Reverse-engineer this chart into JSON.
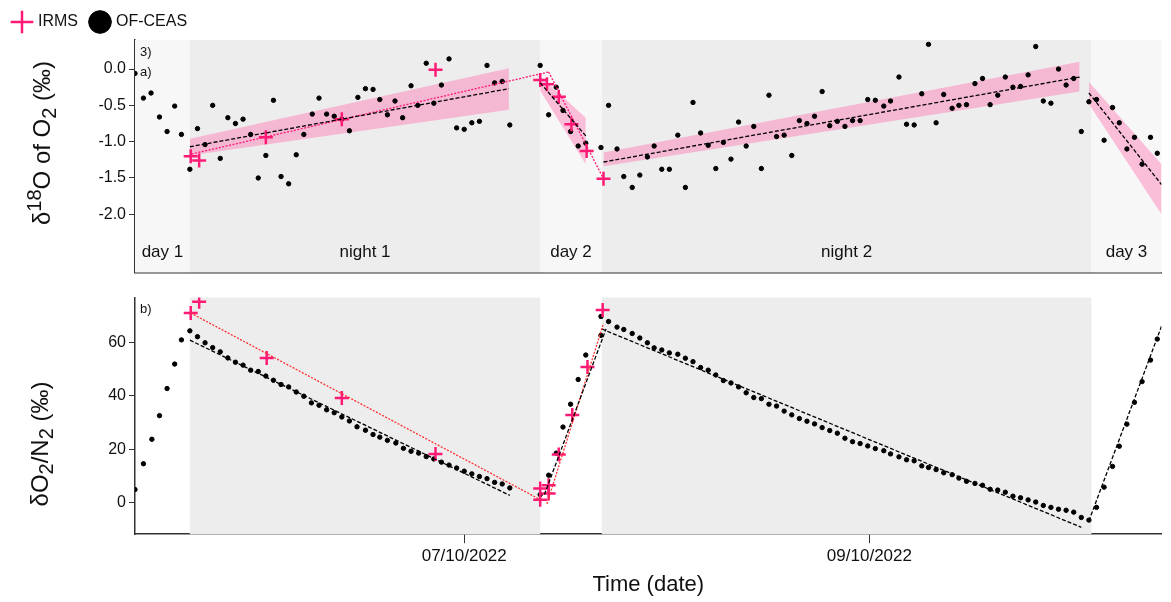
{
  "chart_data": [
    {
      "type": "scatter",
      "ylabel": "δ$^{18}$O of O$_{2}$ (‰)",
      "xlim": [
        "2022-10-05T09:00",
        "2022-10-10T10:36"
      ],
      "ylim": [
        -2.8,
        0.4
      ],
      "yticks": [
        {
          "value": 0,
          "label": "0.0"
        },
        -0.5,
        {
          "value": -1,
          "label": "-1.0"
        },
        -1.5,
        {
          "value": -2,
          "label": "-2.0"
        }
      ],
      "tick_labels": "y",
      "legend": "top left",
      "bands": [
        {
          "axis": "x",
          "from": "2022-10-05T09:00",
          "to": "2022-10-05T15:30",
          "label": "day 1",
          "color": "#f7f7f7"
        },
        {
          "axis": "x",
          "from": "2022-10-05T15:30",
          "to": "2022-10-07T09:00",
          "label": "night 1",
          "color": "#ededed"
        },
        {
          "axis": "x",
          "from": "2022-10-07T09:00",
          "to": "2022-10-07T16:18",
          "label": "day 2",
          "color": "#f7f7f7"
        },
        {
          "axis": "x",
          "from": "2022-10-07T16:18",
          "to": "2022-10-10T02:18",
          "label": "night 2",
          "color": "#ededed"
        },
        {
          "axis": "x",
          "from": "2022-10-10T02:18",
          "to": "2022-10-10T10:36",
          "label": "day 3",
          "color": "#f7f7f7"
        }
      ],
      "annotations": [
        "3)",
        "a)"
      ],
      "series": [
        {
          "name": "IRMS",
          "color": "#ff1a75",
          "marker": "cross",
          "x": [
            "2022-10-05T15:36",
            "2022-10-05T16:36",
            "2022-10-06T00:30",
            "2022-10-06T09:30",
            "2022-10-06T20:36",
            "2022-10-07T09:00",
            "2022-10-07T09:48",
            "2022-10-07T11:12",
            "2022-10-07T12:42",
            "2022-10-07T14:30",
            "2022-10-07T16:30"
          ],
          "values": [
            -1.2,
            -1.26,
            -0.94,
            -0.69,
            -0.01,
            -0.15,
            -0.21,
            -0.38,
            -0.76,
            -1.13,
            -1.51
          ]
        },
        {
          "name": "OF-CEAS",
          "color": "#000000",
          "marker": "circle",
          "x": [
            "2022-10-05T09:00",
            "2022-10-05T10:00",
            "2022-10-05T10:54",
            "2022-10-05T11:54",
            "2022-10-05T12:48",
            "2022-10-05T13:42",
            "2022-10-05T14:30",
            "2022-10-05T15:30",
            "2022-10-05T16:24",
            "2022-10-05T17:18",
            "2022-10-05T18:12",
            "2022-10-05T19:06",
            "2022-10-05T20:00",
            "2022-10-05T20:54",
            "2022-10-05T21:48",
            "2022-10-05T22:42",
            "2022-10-05T23:36",
            "2022-10-06T00:30",
            "2022-10-06T01:24",
            "2022-10-06T02:18",
            "2022-10-06T03:12",
            "2022-10-06T04:06",
            "2022-10-06T05:00",
            "2022-10-06T06:00",
            "2022-10-06T06:48",
            "2022-10-06T07:42",
            "2022-10-06T08:36",
            "2022-10-06T09:30",
            "2022-10-06T10:24",
            "2022-10-06T11:24",
            "2022-10-06T12:18",
            "2022-10-06T13:12",
            "2022-10-06T14:00",
            "2022-10-06T14:54",
            "2022-10-06T15:48",
            "2022-10-06T16:42",
            "2022-10-06T17:42",
            "2022-10-06T18:30",
            "2022-10-06T19:30",
            "2022-10-06T20:24",
            "2022-10-06T21:18",
            "2022-10-06T22:12",
            "2022-10-06T23:06",
            "2022-10-07T00:00",
            "2022-10-07T00:54",
            "2022-10-07T01:48",
            "2022-10-07T02:42",
            "2022-10-07T03:36",
            "2022-10-07T04:30",
            "2022-10-07T05:24",
            "2022-10-07T09:00",
            "2022-10-07T10:00",
            "2022-10-07T10:54",
            "2022-10-07T11:42",
            "2022-10-07T12:36",
            "2022-10-07T13:30",
            "2022-10-07T14:24",
            "2022-10-07T16:12",
            "2022-10-07T17:06",
            "2022-10-07T18:06",
            "2022-10-07T18:54",
            "2022-10-07T19:54",
            "2022-10-07T20:48",
            "2022-10-07T21:42",
            "2022-10-07T22:30",
            "2022-10-07T23:24",
            "2022-10-08T00:18",
            "2022-10-08T01:18",
            "2022-10-08T02:12",
            "2022-10-08T03:06",
            "2022-10-08T04:00",
            "2022-10-08T04:54",
            "2022-10-08T05:48",
            "2022-10-08T06:42",
            "2022-10-08T07:36",
            "2022-10-08T08:30",
            "2022-10-08T09:24",
            "2022-10-08T10:18",
            "2022-10-08T11:12",
            "2022-10-08T12:06",
            "2022-10-08T13:00",
            "2022-10-08T13:54",
            "2022-10-08T14:48",
            "2022-10-08T15:42",
            "2022-10-08T16:36",
            "2022-10-08T17:30",
            "2022-10-08T18:24",
            "2022-10-08T19:18",
            "2022-10-08T20:12",
            "2022-10-08T21:06",
            "2022-10-08T22:00",
            "2022-10-08T22:54",
            "2022-10-08T23:48",
            "2022-10-09T00:42",
            "2022-10-09T01:42",
            "2022-10-09T02:30",
            "2022-10-09T03:30",
            "2022-10-09T04:24",
            "2022-10-09T05:18",
            "2022-10-09T06:12",
            "2022-10-09T07:00",
            "2022-10-09T07:54",
            "2022-10-09T08:48",
            "2022-10-09T09:48",
            "2022-10-09T10:36",
            "2022-10-09T11:30",
            "2022-10-09T12:30",
            "2022-10-09T13:24",
            "2022-10-09T14:18",
            "2022-10-09T15:12",
            "2022-10-09T16:06",
            "2022-10-09T17:00",
            "2022-10-09T17:54",
            "2022-10-09T18:48",
            "2022-10-09T19:42",
            "2022-10-09T20:36",
            "2022-10-09T21:30",
            "2022-10-09T22:24",
            "2022-10-09T23:18",
            "2022-10-10T00:12",
            "2022-10-10T01:06",
            "2022-10-10T02:00",
            "2022-10-10T02:54",
            "2022-10-10T03:48",
            "2022-10-10T04:48",
            "2022-10-10T05:36",
            "2022-10-10T06:30",
            "2022-10-10T07:24",
            "2022-10-10T08:18",
            "2022-10-10T09:18",
            "2022-10-10T10:06"
          ],
          "values": [
            -0.06,
            -0.4,
            -0.33,
            -0.66,
            -0.86,
            -0.51,
            -0.9,
            -1.38,
            -0.82,
            -1.04,
            -0.5,
            -1.23,
            -0.67,
            -0.75,
            -0.69,
            -0.9,
            -1.5,
            -1.19,
            -0.43,
            -1.48,
            -1.58,
            -1.18,
            -0.9,
            -0.62,
            -0.4,
            -0.62,
            -0.65,
            -0.69,
            -0.85,
            -0.39,
            -0.27,
            -0.28,
            -0.42,
            -0.63,
            -0.44,
            -0.67,
            -0.23,
            -0.5,
            0.08,
            -0.47,
            -0.22,
            0.14,
            -0.81,
            -0.83,
            -0.74,
            -0.72,
            0.05,
            -0.19,
            -0.17,
            -0.77,
            0.05,
            -0.63,
            -0.25,
            -0.57,
            -0.86,
            -1.06,
            -1.02,
            -1.08,
            -0.5,
            -1.1,
            -1.48,
            -1.63,
            -1.46,
            -1.21,
            -1.06,
            -1.38,
            -1.38,
            -0.91,
            -1.63,
            -0.46,
            -0.88,
            -1.05,
            -1.37,
            -1.01,
            -1.24,
            -0.73,
            -1.06,
            -0.79,
            -1.37,
            -0.36,
            -0.93,
            -0.91,
            -1.19,
            -0.71,
            -0.75,
            -0.65,
            -0.31,
            -0.78,
            -0.72,
            -0.79,
            -0.71,
            -0.71,
            -0.42,
            -0.43,
            -0.51,
            -0.44,
            -0.11,
            -0.76,
            -0.77,
            -0.34,
            0.34,
            -0.74,
            -0.35,
            -0.54,
            -0.5,
            -0.49,
            -0.2,
            -0.13,
            -0.49,
            -0.36,
            -0.11,
            -0.25,
            -0.24,
            -0.08,
            0.31,
            -0.44,
            -0.47,
            0.0,
            -0.22,
            -0.13,
            -0.86,
            -0.45,
            -0.42,
            -0.98,
            -0.53,
            -0.74,
            -1.1,
            -0.94,
            -1.31,
            -0.94,
            -1.16
          ]
        },
        {
          "type": "line",
          "color": "#000000",
          "line_style": "dashed",
          "marker": "none",
          "x": [
            "2022-10-05T15:30",
            "2022-10-07T05:18"
          ],
          "values": [
            -1.07,
            -0.27
          ],
          "lower": [
            -1.19,
            -0.56
          ],
          "upper": [
            -0.96,
            0.01
          ]
        },
        {
          "type": "line",
          "color": "#ff1a75",
          "line_style": "dotted",
          "marker": "none",
          "x": [
            "2022-10-05T15:42",
            "2022-10-07T10:00"
          ],
          "values": [
            -1.17,
            -0.04
          ]
        },
        {
          "type": "line",
          "color": "#000000",
          "line_style": "dashed",
          "marker": "none",
          "x": [
            "2022-10-07T09:00",
            "2022-10-07T14:24"
          ],
          "values": [
            -0.19,
            -0.92
          ],
          "lower": [
            -0.3,
            -1.31
          ],
          "upper": [
            -0.1,
            -0.67
          ]
        },
        {
          "type": "line",
          "color": "#ff1a75",
          "line_style": "dotted",
          "marker": "none",
          "x": [
            "2022-10-07T10:00",
            "2022-10-07T16:30"
          ],
          "values": [
            -0.04,
            -1.51
          ]
        },
        {
          "type": "line",
          "color": "#000000",
          "line_style": "dashed",
          "marker": "none",
          "x": [
            "2022-10-07T16:30",
            "2022-10-10T00:54"
          ],
          "values": [
            -1.28,
            -0.11
          ],
          "lower": [
            -1.34,
            -0.31
          ],
          "upper": [
            -1.15,
            0.1
          ]
        },
        {
          "type": "line",
          "color": "#000000",
          "line_style": "dashed",
          "marker": "none",
          "x": [
            "2022-10-10T02:00",
            "2022-10-10T10:36"
          ],
          "values": [
            -0.33,
            -1.59
          ],
          "lower": [
            -0.48,
            -2.0
          ],
          "upper": [
            -0.18,
            -1.31
          ]
        }
      ]
    },
    {
      "type": "scatter",
      "ylabel": "δO$_{2}$/N$_{2}$ (‰)",
      "xlabel": "Time (date)",
      "xlim": [
        "2022-10-05T09:00",
        "2022-10-10T10:36"
      ],
      "ylim": [
        -12,
        77
      ],
      "yticks": [
        0,
        20,
        40,
        60
      ],
      "xticks": [
        {
          "value": "2022-10-07",
          "label": "07/10/2022"
        },
        {
          "value": "2022-10-09",
          "label": "09/10/2022"
        }
      ],
      "bands": [
        {
          "axis": "x",
          "from": "2022-10-05T15:30",
          "to": "2022-10-07T09:00",
          "color": "#ededed"
        },
        {
          "axis": "x",
          "from": "2022-10-07T16:18",
          "to": "2022-10-10T02:18",
          "color": "#ededed"
        }
      ],
      "annotations": [
        "b)"
      ],
      "series": [
        {
          "color": "#ff1a75",
          "marker": "cross",
          "x": [
            "2022-10-05T15:36",
            "2022-10-05T16:36",
            "2022-10-06T00:36",
            "2022-10-06T09:30",
            "2022-10-06T20:36",
            "2022-10-07T09:00",
            "2022-10-07T09:00",
            "2022-10-07T10:00",
            "2022-10-07T10:00",
            "2022-10-07T11:12",
            "2022-10-07T12:48",
            "2022-10-07T14:36",
            "2022-10-07T16:24"
          ],
          "values": [
            71.2,
            75.4,
            54.3,
            39.2,
            18.2,
            5.2,
            1.0,
            6.4,
            3.3,
            18.0,
            32.8,
            50.9,
            72.3
          ]
        },
        {
          "color": "#000000",
          "marker": "circle",
          "x": [
            "2022-10-05T09:00",
            "2022-10-05T10:00",
            "2022-10-05T11:00",
            "2022-10-05T11:54",
            "2022-10-05T12:48",
            "2022-10-05T13:42",
            "2022-10-05T14:30",
            "2022-10-05T15:30",
            "2022-10-05T16:24",
            "2022-10-05T17:18",
            "2022-10-05T18:12",
            "2022-10-05T19:06",
            "2022-10-05T20:00",
            "2022-10-05T20:54",
            "2022-10-05T21:48",
            "2022-10-05T22:42",
            "2022-10-05T23:36",
            "2022-10-06T00:30",
            "2022-10-06T01:24",
            "2022-10-06T02:18",
            "2022-10-06T03:12",
            "2022-10-06T04:06",
            "2022-10-06T05:00",
            "2022-10-06T05:54",
            "2022-10-06T06:48",
            "2022-10-06T07:42",
            "2022-10-06T08:36",
            "2022-10-06T09:30",
            "2022-10-06T10:24",
            "2022-10-06T11:18",
            "2022-10-06T12:18",
            "2022-10-06T13:12",
            "2022-10-06T14:00",
            "2022-10-06T14:54",
            "2022-10-06T15:54",
            "2022-10-06T16:48",
            "2022-10-06T17:42",
            "2022-10-06T18:36",
            "2022-10-06T19:30",
            "2022-10-06T20:24",
            "2022-10-06T21:18",
            "2022-10-06T22:12",
            "2022-10-06T23:06",
            "2022-10-07T00:00",
            "2022-10-07T00:54",
            "2022-10-07T01:48",
            "2022-10-07T02:42",
            "2022-10-07T03:36",
            "2022-10-07T04:30",
            "2022-10-07T05:24",
            "2022-10-07T09:00",
            "2022-10-07T10:00",
            "2022-10-07T10:54",
            "2022-10-07T11:42",
            "2022-10-07T12:36",
            "2022-10-07T13:30",
            "2022-10-07T14:24",
            "2022-10-07T16:12",
            "2022-10-07T16:12",
            "2022-10-07T17:06",
            "2022-10-07T18:06",
            "2022-10-07T18:54",
            "2022-10-07T19:54",
            "2022-10-07T20:48",
            "2022-10-07T21:42",
            "2022-10-07T22:30",
            "2022-10-07T23:24",
            "2022-10-08T00:18",
            "2022-10-08T01:18",
            "2022-10-08T02:12",
            "2022-10-08T03:06",
            "2022-10-08T04:00",
            "2022-10-08T04:54",
            "2022-10-08T05:48",
            "2022-10-08T06:42",
            "2022-10-08T07:36",
            "2022-10-08T08:30",
            "2022-10-08T09:24",
            "2022-10-08T10:18",
            "2022-10-08T11:12",
            "2022-10-08T12:06",
            "2022-10-08T13:00",
            "2022-10-08T13:54",
            "2022-10-08T14:48",
            "2022-10-08T15:42",
            "2022-10-08T16:36",
            "2022-10-08T17:30",
            "2022-10-08T18:24",
            "2022-10-08T19:18",
            "2022-10-08T20:12",
            "2022-10-08T21:06",
            "2022-10-08T22:00",
            "2022-10-08T22:54",
            "2022-10-08T23:48",
            "2022-10-09T00:42",
            "2022-10-09T01:42",
            "2022-10-09T02:30",
            "2022-10-09T03:30",
            "2022-10-09T04:24",
            "2022-10-09T05:18",
            "2022-10-09T06:12",
            "2022-10-09T07:00",
            "2022-10-09T07:54",
            "2022-10-09T08:48",
            "2022-10-09T09:48",
            "2022-10-09T10:36",
            "2022-10-09T11:30",
            "2022-10-09T12:30",
            "2022-10-09T13:24",
            "2022-10-09T14:18",
            "2022-10-09T15:12",
            "2022-10-09T16:06",
            "2022-10-09T17:00",
            "2022-10-09T17:54",
            "2022-10-09T18:48",
            "2022-10-09T19:42",
            "2022-10-09T20:36",
            "2022-10-09T21:30",
            "2022-10-09T22:24",
            "2022-10-09T23:18",
            "2022-10-10T00:12",
            "2022-10-10T01:06",
            "2022-10-10T02:00",
            "2022-10-10T02:54",
            "2022-10-10T03:48",
            "2022-10-10T04:48",
            "2022-10-10T05:36",
            "2022-10-10T06:30",
            "2022-10-10T07:24",
            "2022-10-10T08:18",
            "2022-10-10T09:18",
            "2022-10-10T10:06"
          ],
          "values": [
            4.8,
            14.5,
            23.7,
            32.6,
            42.8,
            52.0,
            61.1,
            64.5,
            62.3,
            60.0,
            58.2,
            56.6,
            54.3,
            52.7,
            51.6,
            49.7,
            49.2,
            47.5,
            45.9,
            44.3,
            43.4,
            41.5,
            39.9,
            37.4,
            36.5,
            34.8,
            33.7,
            32.1,
            30.6,
            28.4,
            27.1,
            25.5,
            24.5,
            23.3,
            22.3,
            20.3,
            19.2,
            18.5,
            17.2,
            16.3,
            15.1,
            14.0,
            12.9,
            11.7,
            10.7,
            9.7,
            8.9,
            7.5,
            6.9,
            5.4,
            2.9,
            10.2,
            18.5,
            28.3,
            36.9,
            46.2,
            55.4,
            62.8,
            69.9,
            68.0,
            65.9,
            65.0,
            63.5,
            61.8,
            60.0,
            58.1,
            57.3,
            56.2,
            55.7,
            54.2,
            52.9,
            50.7,
            49.7,
            47.9,
            45.8,
            44.9,
            43.4,
            41.2,
            39.4,
            39.0,
            36.9,
            36.2,
            34.3,
            32.9,
            31.5,
            30.5,
            29.5,
            28.1,
            27.0,
            26.0,
            24.1,
            22.8,
            22.1,
            21.2,
            20.2,
            19.4,
            18.2,
            17.1,
            16.0,
            15.6,
            13.7,
            13.1,
            12.3,
            11.1,
            10.4,
            9.1,
            7.9,
            7.1,
            6.4,
            4.9,
            4.6,
            3.8,
            2.3,
            1.7,
            0.9,
            0.1,
            -1.2,
            -1.9,
            -2.6,
            -3.0,
            -3.7,
            -5.7,
            -6.7,
            -1.9,
            5.7,
            13.5,
            21.1,
            29.4,
            37.6,
            45.4,
            53.5,
            61.4
          ]
        },
        {
          "type": "line",
          "color": "#000000",
          "line_style": "dashed",
          "marker": "none",
          "x": [
            "2022-10-05T15:30",
            "2022-10-07T05:24"
          ],
          "values": [
            61.0,
            2.6
          ]
        },
        {
          "type": "line",
          "color": "#ff3030",
          "line_style": "dotted",
          "marker": "none",
          "x": [
            "2022-10-05T15:36",
            "2022-10-07T09:00"
          ],
          "values": [
            71.2,
            1.0
          ]
        },
        {
          "type": "line",
          "color": "#000000",
          "line_style": "dashed",
          "marker": "none",
          "x": [
            "2022-10-07T09:30",
            "2022-10-07T16:48"
          ],
          "values": [
            2.9,
            65.2
          ]
        },
        {
          "type": "line",
          "color": "#ff3030",
          "line_style": "dotted",
          "marker": "none",
          "x": [
            "2022-10-07T09:48",
            "2022-10-07T16:30"
          ],
          "values": [
            -0.6,
            67.3
          ]
        },
        {
          "type": "line",
          "color": "#000000",
          "line_style": "dashed",
          "marker": "none",
          "x": [
            "2022-10-07T16:18",
            "2022-10-10T01:06"
          ],
          "values": [
            65.2,
            -9.4
          ]
        },
        {
          "type": "line",
          "color": "#000000",
          "line_style": "dashed",
          "marker": "none",
          "x": [
            "2022-10-10T02:00",
            "2022-10-10T10:36"
          ],
          "values": [
            -7.0,
            66.2
          ]
        }
      ]
    }
  ]
}
